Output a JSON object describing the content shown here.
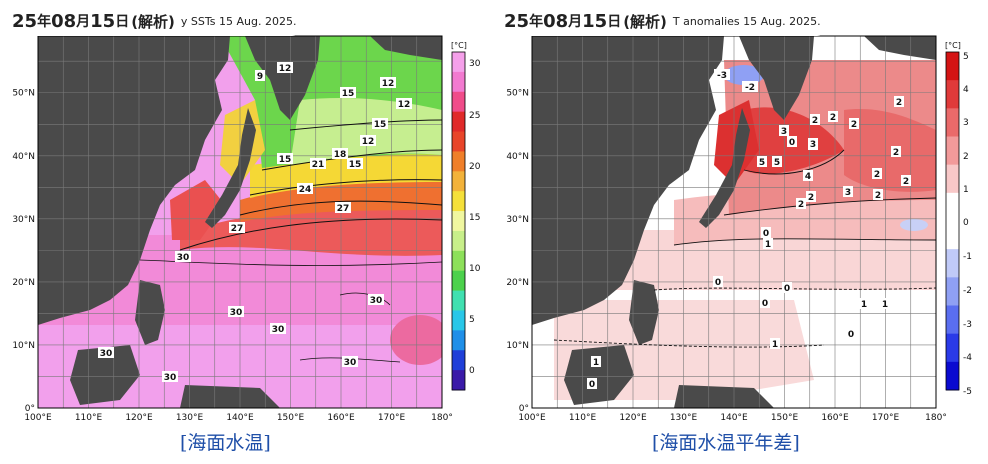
{
  "panels": [
    {
      "id": "sst",
      "date": {
        "year": "25",
        "year_unit": "年",
        "month": "08",
        "month_unit": "月",
        "day": "15",
        "day_unit": "日",
        "note": "(解析)"
      },
      "subtitle": "y SSTs 15 Aug. 2025.",
      "caption": "[海面水温]",
      "colorbar": {
        "unit": "[°C]",
        "ticks": [
          "30",
          "25",
          "20",
          "15",
          "10",
          "5",
          "0"
        ],
        "colors": [
          "#3a1aa8",
          "#1f3fd8",
          "#1f8fe8",
          "#29c7e8",
          "#40e0b0",
          "#4cd14c",
          "#8de05a",
          "#c8ef8a",
          "#f0f7a0",
          "#f5e03a",
          "#f2b23a",
          "#ef7f2a",
          "#e8452a",
          "#e02a2a",
          "#f04c8a",
          "#f27ad0",
          "#f5a0ea"
        ]
      },
      "contour_labels": [
        "12",
        "9",
        "15",
        "12",
        "12",
        "15",
        "12",
        "15",
        "21",
        "18",
        "15",
        "24",
        "27",
        "27",
        "30",
        "30",
        "30",
        "30",
        "30",
        "30",
        "30"
      ]
    },
    {
      "id": "anomaly",
      "date": {
        "year": "25",
        "year_unit": "年",
        "month": "08",
        "month_unit": "月",
        "day": "15",
        "day_unit": "日",
        "note": "(解析)"
      },
      "subtitle": "T anomalies 15 Aug. 2025.",
      "caption": "[海面水温平年差]",
      "colorbar": {
        "unit": "[°C]",
        "ticks": [
          "5",
          "4",
          "3",
          "2",
          "1",
          "0",
          "-1",
          "-2",
          "-3",
          "-4",
          "-5"
        ],
        "colors": [
          "#0a0ad0",
          "#2a3ae8",
          "#5a6ef0",
          "#8fa0f4",
          "#c0caf8",
          "#ffffff",
          "#ffffff",
          "#f8c8c8",
          "#f29a9a",
          "#ea6a6a",
          "#e03a3a",
          "#d41414"
        ]
      },
      "contour_labels": [
        "-3",
        "-2",
        "2",
        "2",
        "2",
        "2",
        "2",
        "2",
        "0",
        "3",
        "5",
        "5",
        "4",
        "3",
        "2",
        "2",
        "2",
        "3",
        "3",
        "2",
        "0",
        "1",
        "0",
        "0",
        "0",
        "1",
        "1",
        "1",
        "0",
        "1",
        "0"
      ]
    }
  ],
  "axes": {
    "x_ticks": [
      "100°E",
      "110°E",
      "120°E",
      "130°E",
      "140°E",
      "150°E",
      "160°E",
      "170°E",
      "180°"
    ],
    "y_ticks": [
      "50°N",
      "40°N",
      "30°N",
      "20°N",
      "10°N",
      "0°"
    ],
    "x_range": [
      100,
      180
    ],
    "y_range": [
      0,
      59
    ]
  },
  "colors": {
    "land": "#4a4a4a",
    "frame": "#000000",
    "caption": "#1f4fa8"
  }
}
